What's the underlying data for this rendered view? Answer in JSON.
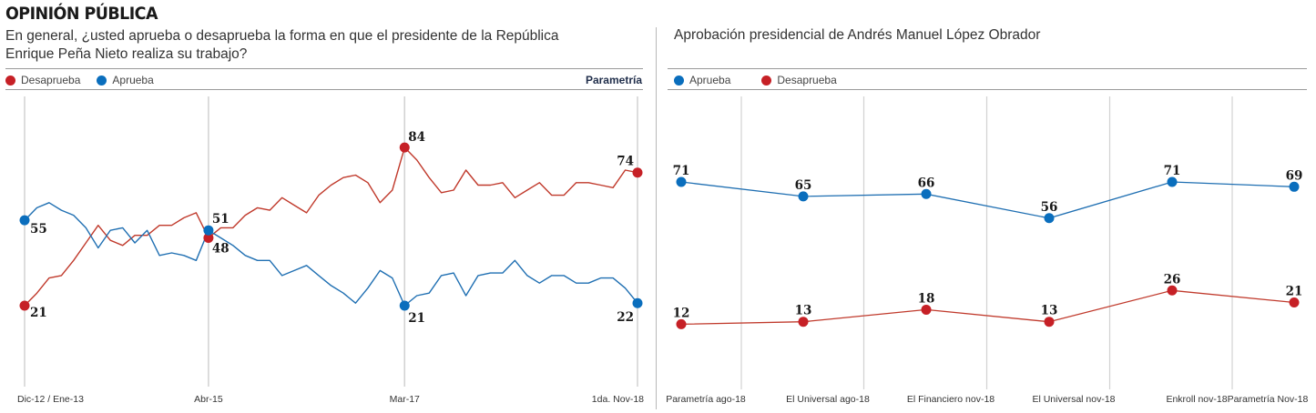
{
  "section_title": "OPINIÓN PÚBLICA",
  "colors": {
    "desaprueba": "#c62026",
    "aprueba": "#0a6ebd",
    "gridline": "#cfcfcf",
    "rule": "#9a9a9a",
    "source": "#1f2d4a"
  },
  "chart_data": [
    {
      "type": "line",
      "title": "En general, ¿usted aprueba o desaprueba la forma en que el presidente de la República Enrique Peña Nieto realiza su trabajo?",
      "source": "Parametría",
      "legend": [
        "Desaprueba",
        "Aprueba"
      ],
      "legend_position": "top-left",
      "xlabel": "",
      "ylabel": "",
      "ylim": [
        0,
        100
      ],
      "grid": "vertical at labeled periods",
      "x_tick_labels": [
        "Dic-12 / Ene-13",
        "Abr-15",
        "Mar-17",
        "1da. Nov-18"
      ],
      "x_tick_indices": [
        0,
        15,
        31,
        49
      ],
      "series": [
        {
          "name": "Desaprueba",
          "color": "#c62026",
          "values": [
            21,
            26,
            32,
            33,
            39,
            46,
            53,
            47,
            45,
            49,
            49,
            53,
            53,
            56,
            58,
            48,
            52,
            52,
            57,
            60,
            59,
            64,
            61,
            58,
            65,
            69,
            72,
            73,
            70,
            62,
            67,
            84,
            79,
            72,
            66,
            67,
            75,
            69,
            69,
            70,
            64,
            67,
            70,
            65,
            65,
            70,
            70,
            69,
            68,
            75,
            74
          ],
          "labels": [
            {
              "index": 0,
              "text": "21"
            },
            {
              "index": 15,
              "text": "48"
            },
            {
              "index": 31,
              "text": "84"
            },
            {
              "index": 50,
              "text": "74"
            }
          ]
        },
        {
          "name": "Aprueba",
          "color": "#0a6ebd",
          "values": [
            55,
            60,
            62,
            59,
            57,
            52,
            44,
            51,
            52,
            46,
            51,
            41,
            42,
            41,
            39,
            51,
            48,
            45,
            41,
            39,
            39,
            33,
            35,
            37,
            33,
            29,
            26,
            22,
            28,
            35,
            32,
            21,
            25,
            26,
            33,
            34,
            25,
            33,
            34,
            34,
            39,
            33,
            30,
            33,
            33,
            30,
            30,
            32,
            32,
            28,
            22
          ],
          "labels": [
            {
              "index": 0,
              "text": "55"
            },
            {
              "index": 15,
              "text": "51"
            },
            {
              "index": 31,
              "text": "21"
            },
            {
              "index": 50,
              "text": "22"
            }
          ]
        }
      ]
    },
    {
      "type": "line",
      "title": "Aprobación presidencial de Andrés Manuel López Obrador",
      "legend": [
        "Aprueba",
        "Desaprueba"
      ],
      "legend_position": "top-left",
      "xlabel": "",
      "ylabel": "",
      "ylim": [
        0,
        100
      ],
      "grid": "vertical between categories",
      "categories": [
        "Parametría ago-18",
        "El Universal ago-18",
        "El Financiero nov-18",
        "El Universal nov-18",
        "Enkroll nov-18",
        "Parametría Nov-18"
      ],
      "series": [
        {
          "name": "Aprueba",
          "color": "#0a6ebd",
          "values": [
            71,
            65,
            66,
            56,
            71,
            69
          ]
        },
        {
          "name": "Desaprueba",
          "color": "#c62026",
          "values": [
            12,
            13,
            18,
            13,
            26,
            21
          ]
        }
      ]
    }
  ]
}
